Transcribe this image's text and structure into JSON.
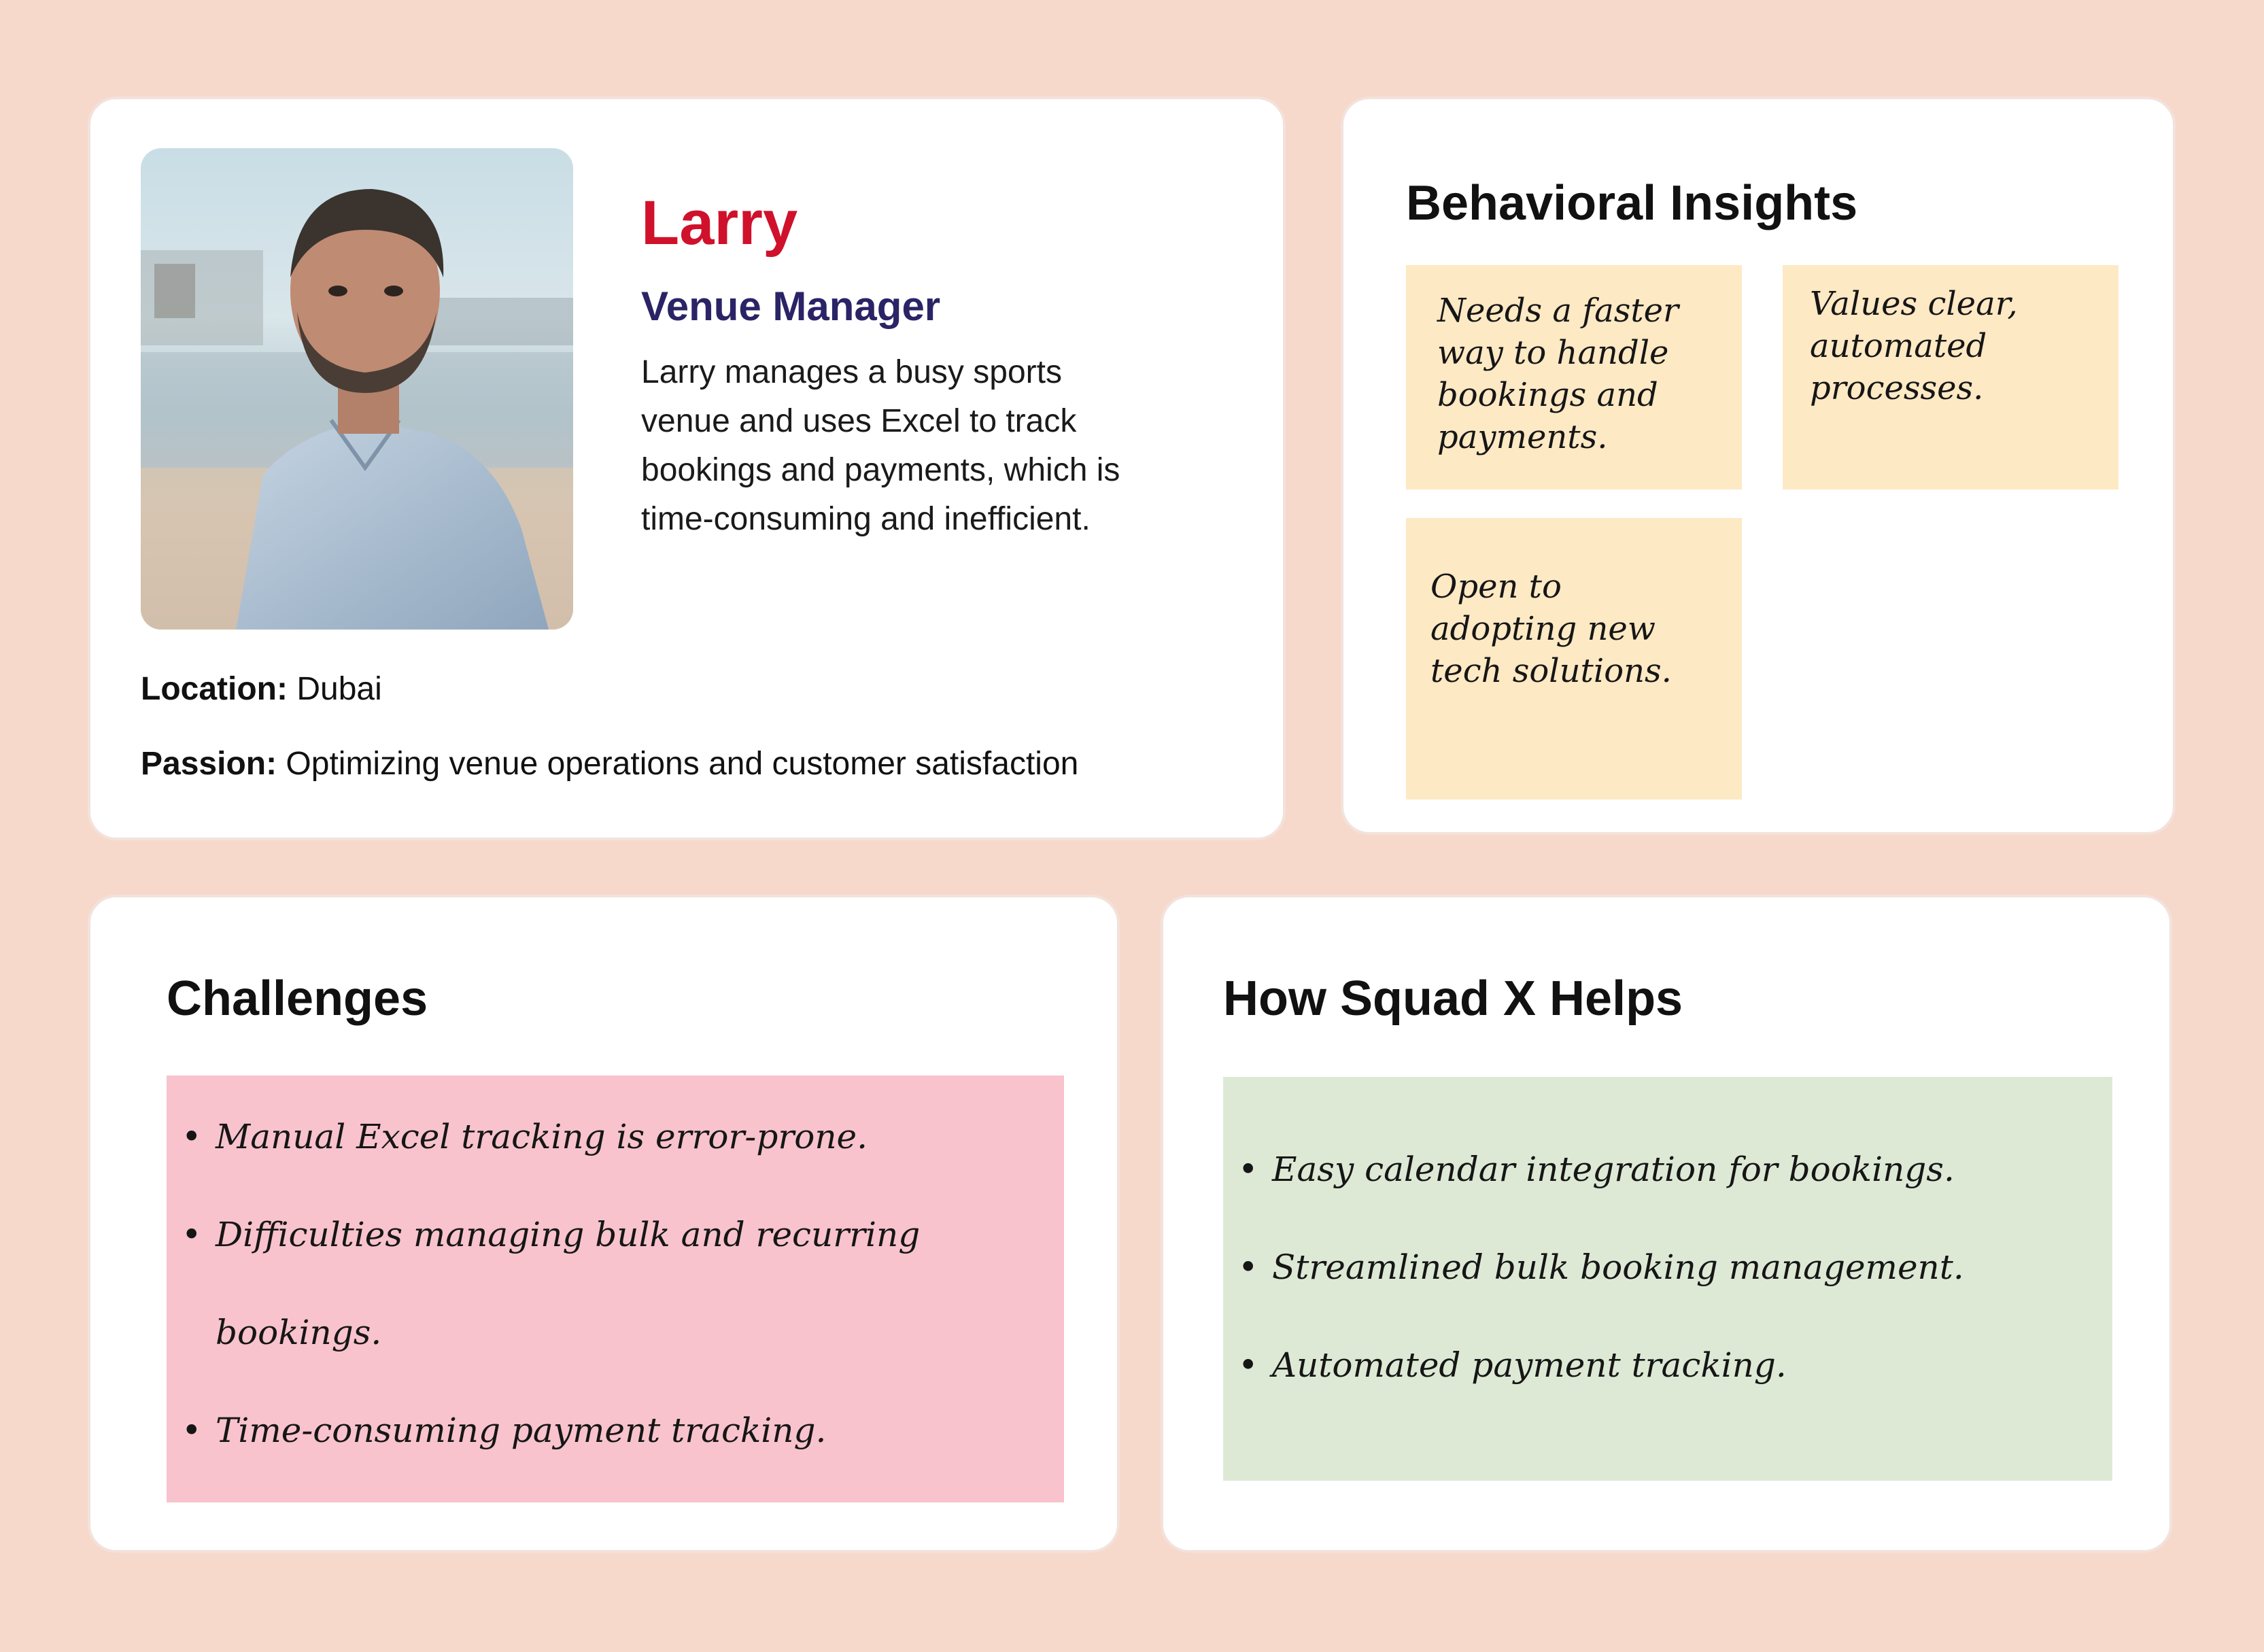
{
  "profile": {
    "name": "Larry",
    "role": "Venue Manager",
    "bio": "Larry manages a busy sports venue and uses Excel to track bookings and payments, which is time-consuming and inefficient.",
    "location_label": "Location:",
    "location_value": "Dubai",
    "passion_label": "Passion:",
    "passion_value": "Optimizing venue operations and customer satisfaction"
  },
  "insights": {
    "title": "Behavioral Insights",
    "notes": [
      "Needs a faster way to handle bookings and payments.",
      "Values clear, automated processes.",
      "Open to adopting new tech solutions."
    ]
  },
  "challenges": {
    "title": "Challenges",
    "items": [
      "Manual Excel tracking is error-prone.",
      "Difficulties managing bulk and recurring bookings.",
      "Time-consuming payment tracking."
    ]
  },
  "helps": {
    "title": "How Squad X Helps",
    "items": [
      "Easy calendar integration for bookings.",
      "Streamlined bulk booking management.",
      "Automated payment tracking."
    ]
  },
  "colors": {
    "background": "#f6d9cb",
    "name_accent": "#d0112b",
    "role_accent": "#2a2466",
    "insight_note": "#fde9c4",
    "challenges_note": "#f8c3cd",
    "helps_note": "#dde9d5"
  }
}
